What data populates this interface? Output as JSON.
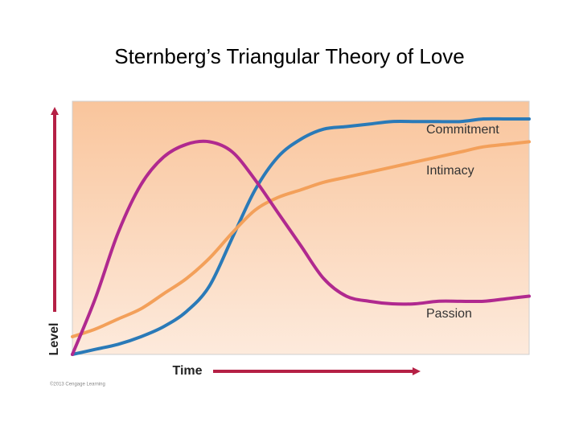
{
  "chart_data": {
    "type": "line",
    "title": "Sternberg’s Triangular Theory of Love",
    "x_label": "Time",
    "y_label": "Level",
    "source": "©2013 Cengage Learning",
    "x": [
      0,
      5,
      10,
      15,
      20,
      25,
      30,
      35,
      40,
      45,
      50,
      55,
      60,
      65,
      70,
      75,
      80,
      85,
      90,
      95,
      100
    ],
    "xlim": [
      0,
      100
    ],
    "ylim": [
      0,
      100
    ],
    "series": [
      {
        "name": "Commitment",
        "color": "#2a7ab8",
        "values": [
          0,
          2,
          4,
          7,
          11,
          17,
          27,
          46,
          65,
          78,
          85,
          89,
          90,
          91,
          92,
          92,
          92,
          92,
          93,
          93,
          93
        ]
      },
      {
        "name": "Intimacy",
        "color": "#f3a05a",
        "values": [
          7,
          10,
          14,
          18,
          24,
          30,
          38,
          48,
          57,
          62,
          65,
          68,
          70,
          72,
          74,
          76,
          78,
          80,
          82,
          83,
          84
        ]
      },
      {
        "name": "Passion",
        "color": "#b0298f",
        "values": [
          0,
          22,
          48,
          67,
          78,
          83,
          84,
          80,
          69,
          56,
          43,
          30,
          23,
          21,
          20,
          20,
          21,
          21,
          21,
          22,
          23
        ]
      }
    ]
  }
}
